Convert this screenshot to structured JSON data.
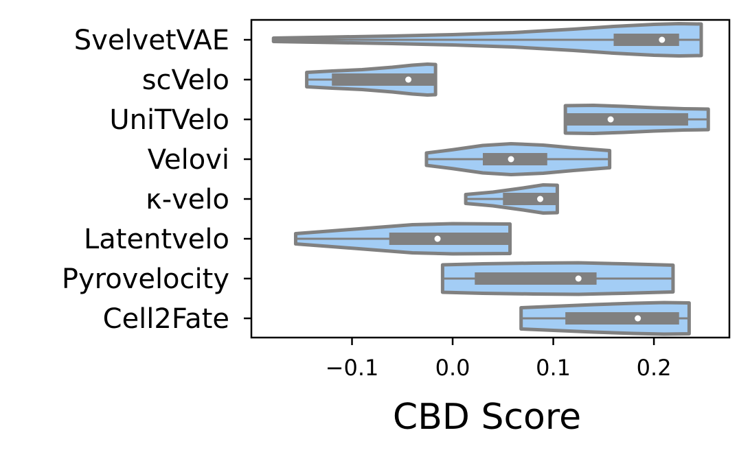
{
  "chart_data": {
    "type": "violin",
    "orientation": "horizontal",
    "title": "",
    "xlabel": "CBD Score",
    "ylabel": "",
    "xlim": [
      -0.2,
      0.275
    ],
    "xticks": [
      -0.1,
      0.0,
      0.1,
      0.2
    ],
    "xtick_labels": [
      "−0.1",
      "0.0",
      "0.1",
      "0.2"
    ],
    "grid": false,
    "colors": {
      "fill": "#a3cdf5",
      "edge": "#808080",
      "box": "#808080",
      "median": "#ffffff"
    },
    "categories": [
      "SvelvetVAE",
      "scVelo",
      "UniTVelo",
      "Velovi",
      "κ-velo",
      "Latentvelo",
      "Pyrovelocity",
      "Cell2Fate"
    ],
    "series": [
      {
        "name": "SvelvetVAE",
        "min": -0.178,
        "q1": 0.16,
        "median": 0.208,
        "q3": 0.225,
        "max": 0.247,
        "density": [
          [
            -0.178,
            0.1
          ],
          [
            -0.12,
            0.16
          ],
          [
            -0.06,
            0.22
          ],
          [
            0.0,
            0.3
          ],
          [
            0.06,
            0.42
          ],
          [
            0.12,
            0.62
          ],
          [
            0.16,
            0.78
          ],
          [
            0.2,
            0.9
          ],
          [
            0.225,
            0.94
          ],
          [
            0.247,
            0.92
          ]
        ]
      },
      {
        "name": "scVelo",
        "min": -0.145,
        "q1": -0.12,
        "median": -0.044,
        "q3": -0.017,
        "max": -0.017,
        "density": [
          [
            -0.145,
            0.42
          ],
          [
            -0.12,
            0.5
          ],
          [
            -0.09,
            0.58
          ],
          [
            -0.06,
            0.72
          ],
          [
            -0.04,
            0.84
          ],
          [
            -0.025,
            0.9
          ],
          [
            -0.017,
            0.88
          ]
        ]
      },
      {
        "name": "UniTVelo",
        "min": 0.112,
        "q1": 0.112,
        "median": 0.157,
        "q3": 0.234,
        "max": 0.254,
        "density": [
          [
            0.112,
            0.8
          ],
          [
            0.14,
            0.82
          ],
          [
            0.17,
            0.76
          ],
          [
            0.2,
            0.68
          ],
          [
            0.23,
            0.62
          ],
          [
            0.254,
            0.6
          ]
        ]
      },
      {
        "name": "Velovi",
        "min": -0.026,
        "q1": 0.03,
        "median": 0.058,
        "q3": 0.094,
        "max": 0.156,
        "density": [
          [
            -0.026,
            0.36
          ],
          [
            0.0,
            0.55
          ],
          [
            0.03,
            0.8
          ],
          [
            0.058,
            0.9
          ],
          [
            0.09,
            0.82
          ],
          [
            0.12,
            0.66
          ],
          [
            0.156,
            0.5
          ]
        ]
      },
      {
        "name": "κ-velo",
        "min": 0.013,
        "q1": 0.05,
        "median": 0.087,
        "q3": 0.104,
        "max": 0.104,
        "density": [
          [
            0.013,
            0.26
          ],
          [
            0.04,
            0.4
          ],
          [
            0.07,
            0.64
          ],
          [
            0.09,
            0.82
          ],
          [
            0.104,
            0.8
          ]
        ]
      },
      {
        "name": "Latentvelo",
        "min": -0.156,
        "q1": -0.063,
        "median": -0.015,
        "q3": 0.057,
        "max": 0.057,
        "density": [
          [
            -0.156,
            0.3
          ],
          [
            -0.12,
            0.46
          ],
          [
            -0.08,
            0.64
          ],
          [
            -0.04,
            0.82
          ],
          [
            0.0,
            0.88
          ],
          [
            0.057,
            0.86
          ]
        ]
      },
      {
        "name": "Pyrovelocity",
        "min": -0.01,
        "q1": 0.022,
        "median": 0.125,
        "q3": 0.143,
        "max": 0.219,
        "density": [
          [
            -0.01,
            0.8
          ],
          [
            0.03,
            0.86
          ],
          [
            0.08,
            0.9
          ],
          [
            0.125,
            0.92
          ],
          [
            0.17,
            0.86
          ],
          [
            0.219,
            0.78
          ]
        ]
      },
      {
        "name": "Cell2Fate",
        "min": 0.068,
        "q1": 0.112,
        "median": 0.184,
        "q3": 0.225,
        "max": 0.235,
        "density": [
          [
            0.068,
            0.62
          ],
          [
            0.1,
            0.7
          ],
          [
            0.14,
            0.8
          ],
          [
            0.18,
            0.88
          ],
          [
            0.21,
            0.92
          ],
          [
            0.235,
            0.9
          ]
        ]
      }
    ]
  }
}
